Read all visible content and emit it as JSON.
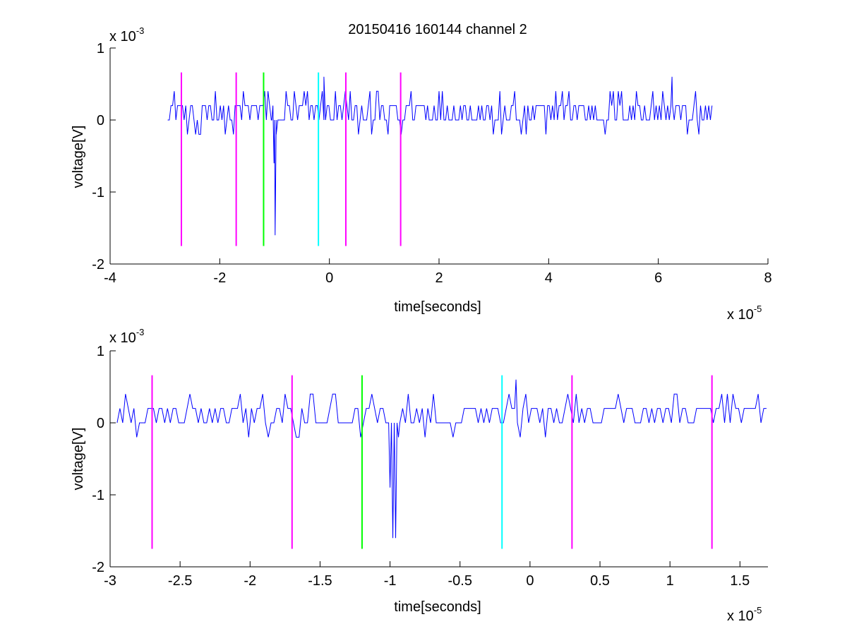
{
  "figure": {
    "background": "#ffffff",
    "axes_color": "#000000"
  },
  "chart_data": [
    {
      "type": "line",
      "title": "20150416 160144 channel 2",
      "xlabel": "time[seconds]",
      "ylabel": "voltage[V]",
      "x_exponent_label": "x 10",
      "x_exponent": "-5",
      "y_exponent_label": "x 10",
      "y_exponent": "-3",
      "xlim": [
        -4,
        8
      ],
      "ylim": [
        -2,
        1
      ],
      "xticks": [
        -4,
        -2,
        0,
        2,
        4,
        6,
        8
      ],
      "xtick_labels": [
        "-4",
        "-2",
        "0",
        "2",
        "4",
        "6",
        "8"
      ],
      "yticks": [
        -2,
        -1,
        0,
        1
      ],
      "ytick_labels": [
        "-2",
        "-1",
        "0",
        "1"
      ],
      "grid": false,
      "legend": "none",
      "series": [
        {
          "color": "#0000ff",
          "signal": {
            "x_start": -2.95,
            "x_end": 7.0,
            "step": 0.03,
            "baseline_levels": [
              0.0,
              0.2
            ],
            "noise_levels": [
              -0.2,
              0.4
            ],
            "spike": {
              "x": [
                -1.05,
                -1.01,
                -0.99,
                -0.97
              ],
              "y": [
                0.0,
                -0.6,
                -1.6,
                -0.2
              ]
            },
            "peaks": [
              {
                "x": -0.1,
                "y": 0.6
              },
              {
                "x": 6.25,
                "y": 0.6
              }
            ],
            "xmin_region": {
              "center": -0.97,
              "width": 0.06
            }
          }
        }
      ],
      "vertical_markers": [
        {
          "x": -2.7,
          "y_min": -1.75,
          "y_max": 0.66,
          "color": "#ff00ff"
        },
        {
          "x": -1.7,
          "y_min": -1.75,
          "y_max": 0.66,
          "color": "#ff00ff"
        },
        {
          "x": -1.2,
          "y_min": -1.75,
          "y_max": 0.66,
          "color": "#00ff00"
        },
        {
          "x": -0.2,
          "y_min": -1.75,
          "y_max": 0.66,
          "color": "#00ffff"
        },
        {
          "x": 0.3,
          "y_min": -1.75,
          "y_max": 0.66,
          "color": "#ff00ff"
        },
        {
          "x": 1.3,
          "y_min": -1.75,
          "y_max": 0.66,
          "color": "#ff00ff"
        }
      ]
    },
    {
      "type": "line",
      "title": "",
      "xlabel": "time[seconds]",
      "ylabel": "voltage[V]",
      "x_exponent_label": "x 10",
      "x_exponent": "-5",
      "y_exponent_label": "x 10",
      "y_exponent": "-3",
      "xlim": [
        -3.0,
        1.7
      ],
      "ylim": [
        -2,
        1
      ],
      "xticks": [
        -3,
        -2.5,
        -2,
        -1.5,
        -1,
        -0.5,
        0,
        0.5,
        1,
        1.5
      ],
      "xtick_labels": [
        "-3",
        "-2.5",
        "-2",
        "-1.5",
        "-1",
        "-0.5",
        "0",
        "0.5",
        "1",
        "1.5"
      ],
      "yticks": [
        -2,
        -1,
        0,
        1
      ],
      "ytick_labels": [
        "-2",
        "-1",
        "0",
        "1"
      ],
      "grid": false,
      "legend": "none",
      "series": [
        {
          "color": "#0000ff",
          "signal": {
            "x_start": -2.95,
            "x_end": 1.7,
            "step": 0.02,
            "baseline_levels": [
              0.0,
              0.2
            ],
            "noise_levels": [
              -0.2,
              0.4
            ],
            "spike": {
              "x": [
                -1.02,
                -1.0,
                -0.98,
                -0.96,
                -0.94
              ],
              "y": [
                0.0,
                -0.9,
                -1.6,
                -1.6,
                -0.2
              ]
            },
            "peaks": [
              {
                "x": -0.1,
                "y": 0.6
              }
            ],
            "xmin_region": {
              "center": -0.98,
              "width": 0.06
            }
          }
        }
      ],
      "vertical_markers": [
        {
          "x": -2.7,
          "y_min": -1.75,
          "y_max": 0.66,
          "color": "#ff00ff"
        },
        {
          "x": -1.7,
          "y_min": -1.75,
          "y_max": 0.66,
          "color": "#ff00ff"
        },
        {
          "x": -1.2,
          "y_min": -1.75,
          "y_max": 0.66,
          "color": "#00ff00"
        },
        {
          "x": -0.2,
          "y_min": -1.75,
          "y_max": 0.66,
          "color": "#00ffff"
        },
        {
          "x": 0.3,
          "y_min": -1.75,
          "y_max": 0.66,
          "color": "#ff00ff"
        },
        {
          "x": 1.3,
          "y_min": -1.75,
          "y_max": 0.66,
          "color": "#ff00ff"
        }
      ]
    }
  ]
}
